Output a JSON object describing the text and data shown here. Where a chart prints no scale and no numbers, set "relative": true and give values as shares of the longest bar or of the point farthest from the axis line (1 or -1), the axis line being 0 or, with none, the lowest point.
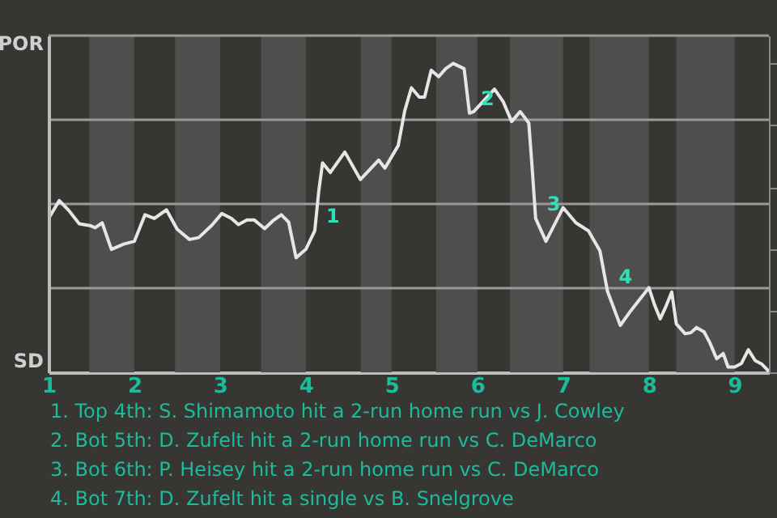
{
  "chart_data": {
    "type": "line",
    "x": [
      1.0,
      1.125,
      1.233,
      1.358,
      1.483,
      1.543,
      1.625,
      1.733,
      1.875,
      2.0,
      2.125,
      2.233,
      2.375,
      2.5,
      2.643,
      2.75,
      2.9,
      3.02,
      3.134,
      3.214,
      3.314,
      3.4,
      3.52,
      3.614,
      3.714,
      3.8,
      3.886,
      4.0,
      4.104,
      4.151,
      4.195,
      4.285,
      4.455,
      4.636,
      4.849,
      4.922,
      5.077,
      5.154,
      5.231,
      5.323,
      5.385,
      5.462,
      5.549,
      5.631,
      5.718,
      5.846,
      5.908,
      5.958,
      6.2,
      6.3,
      6.4,
      6.5,
      6.6,
      6.634,
      6.68,
      6.8,
      7.0,
      7.149,
      7.296,
      7.429,
      7.518,
      7.667,
      7.778,
      8.0,
      8.067,
      8.133,
      8.2,
      8.267,
      8.32,
      8.423,
      8.489,
      8.556,
      8.644,
      8.711,
      8.791,
      8.867,
      8.924,
      9.0,
      9.08,
      9.16,
      9.24,
      9.32,
      9.4
    ],
    "relative": true,
    "series": [
      {
        "color": "#e6e6e6",
        "values": [
          0.498,
          0.556,
          0.525,
          0.481,
          0.475,
          0.468,
          0.484,
          0.398,
          0.415,
          0.424,
          0.51,
          0.498,
          0.526,
          0.463,
          0.43,
          0.436,
          0.475,
          0.514,
          0.498,
          0.478,
          0.493,
          0.493,
          0.465,
          0.49,
          0.51,
          0.486,
          0.371,
          0.398,
          0.458,
          0.586,
          0.678,
          0.647,
          0.713,
          0.624,
          0.687,
          0.661,
          0.734,
          0.847,
          0.921,
          0.891,
          0.891,
          0.978,
          0.957,
          0.983,
          1,
          0.983,
          0.839,
          0.844,
          0.917,
          0.877,
          0.812,
          0.844,
          0.807,
          0.682,
          0.498,
          0.424,
          0.533,
          0.484,
          0.458,
          0.394,
          0.262,
          0.152,
          0.195,
          0.274,
          0.218,
          0.173,
          0.214,
          0.26,
          0.157,
          0.125,
          0.128,
          0.145,
          0.131,
          0.096,
          0.044,
          0.061,
          0.017,
          0.017,
          0.029,
          0.073,
          0.038,
          0.026,
          0.003
        ]
      }
    ],
    "xlim": [
      1,
      9.4
    ],
    "xticks": [
      1,
      2,
      3,
      4,
      5,
      6,
      7,
      8,
      9
    ],
    "grid": "y",
    "marker": "none",
    "line_style": "solid",
    "bands": [
      {
        "axis": "x",
        "from": 1.475,
        "to": 2,
        "color": "#4f4e4c"
      },
      {
        "axis": "x",
        "from": 2.475,
        "to": 3,
        "color": "#4f4e4c"
      },
      {
        "axis": "x",
        "from": 3.48,
        "to": 4,
        "color": "#4f4e4c"
      },
      {
        "axis": "x",
        "from": 4.64,
        "to": 5,
        "color": "#4f4e4c"
      },
      {
        "axis": "x",
        "from": 5.52,
        "to": 6,
        "color": "#4f4e4c"
      },
      {
        "axis": "x",
        "from": 6.38,
        "to": 7,
        "color": "#4f4e4c"
      },
      {
        "axis": "x",
        "from": 7.31,
        "to": 8,
        "color": "#4f4e4c"
      },
      {
        "axis": "x",
        "from": 8.32,
        "to": 9,
        "color": "#4f4e4c"
      }
    ],
    "annotations": [
      "POR",
      "SD",
      {
        "text": "1",
        "x": 4.104,
        "y": 0.458
      },
      {
        "text": "2",
        "x": 5.908,
        "y": 0.839
      },
      {
        "text": "3",
        "x": 6.68,
        "y": 0.498
      },
      {
        "text": "4",
        "x": 7.518,
        "y": 0.262
      },
      "1. Top 4th: S. Shimamoto hit a 2-run home run vs J. Cowley",
      "2. Bot 5th: D. Zufelt hit a 2-run home run vs C. DeMarco",
      "3. Bot 6th: P. Heisey hit a 2-run home run vs C. DeMarco",
      "4. Bot 7th: D. Zufelt hit a single vs B. Snelgrove"
    ]
  }
}
